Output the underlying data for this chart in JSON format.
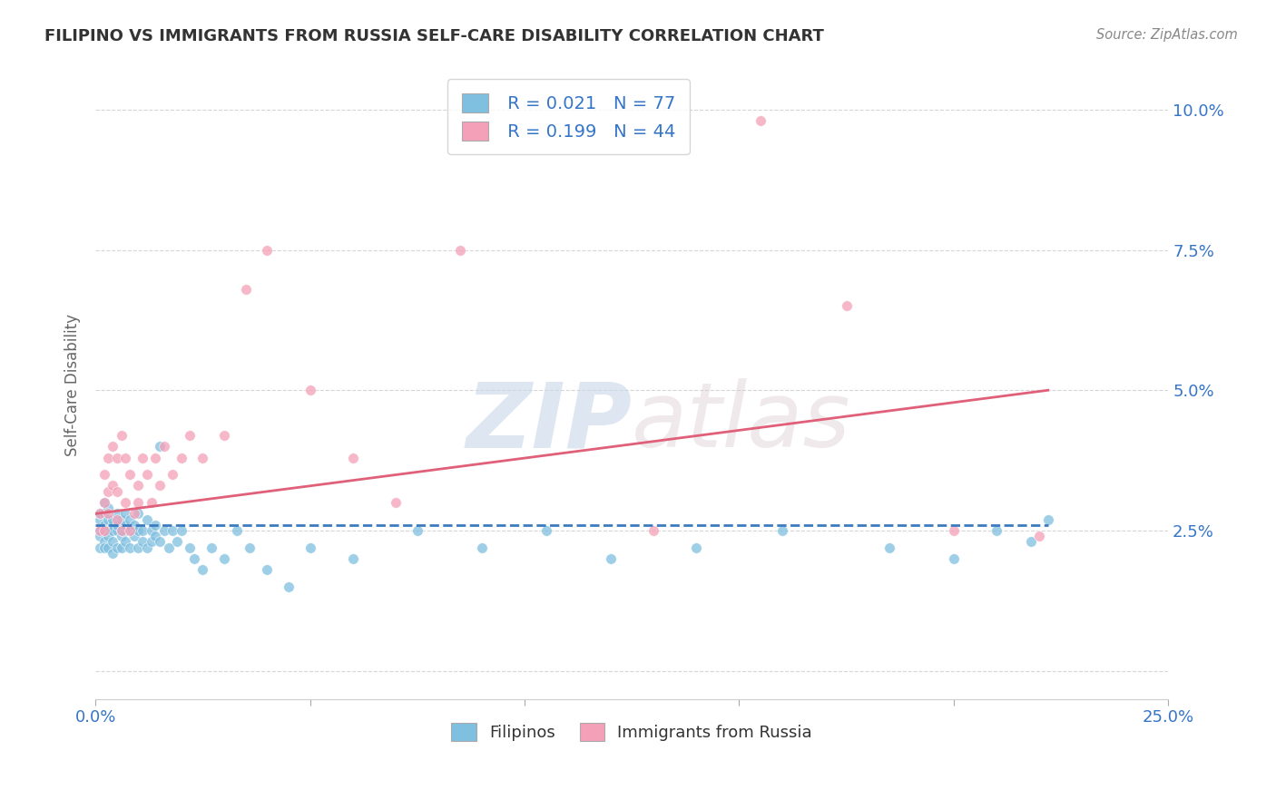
{
  "title": "FILIPINO VS IMMIGRANTS FROM RUSSIA SELF-CARE DISABILITY CORRELATION CHART",
  "source": "Source: ZipAtlas.com",
  "ylabel": "Self-Care Disability",
  "xlim": [
    0.0,
    0.25
  ],
  "ylim": [
    -0.005,
    0.107
  ],
  "xticks": [
    0.0,
    0.05,
    0.1,
    0.15,
    0.2,
    0.25
  ],
  "yticks": [
    0.0,
    0.025,
    0.05,
    0.075,
    0.1
  ],
  "ytick_labels": [
    "",
    "2.5%",
    "5.0%",
    "7.5%",
    "10.0%"
  ],
  "xtick_labels_bottom": [
    "0.0%",
    "",
    "",
    "",
    "",
    "25.0%"
  ],
  "legend_labels": [
    "Filipinos",
    "Immigrants from Russia"
  ],
  "series1_R": 0.021,
  "series1_N": 77,
  "series2_R": 0.199,
  "series2_N": 44,
  "color_blue": "#7fbfdf",
  "color_pink": "#f4a0b8",
  "color_blue_line": "#3c7bbf",
  "color_pink_line": "#e0607a",
  "color_axis": "#3575C8",
  "color_grid": "#cccccc",
  "color_title": "#333333",
  "watermark_zip": "ZIP",
  "watermark_atlas": "atlas",
  "background_color": "#ffffff",
  "blue_scatter_x": [
    0.001,
    0.001,
    0.001,
    0.001,
    0.001,
    0.002,
    0.002,
    0.002,
    0.002,
    0.002,
    0.002,
    0.003,
    0.003,
    0.003,
    0.003,
    0.003,
    0.004,
    0.004,
    0.004,
    0.004,
    0.004,
    0.005,
    0.005,
    0.005,
    0.005,
    0.006,
    0.006,
    0.006,
    0.006,
    0.007,
    0.007,
    0.007,
    0.008,
    0.008,
    0.008,
    0.009,
    0.009,
    0.01,
    0.01,
    0.01,
    0.011,
    0.011,
    0.012,
    0.012,
    0.013,
    0.013,
    0.014,
    0.014,
    0.015,
    0.015,
    0.016,
    0.017,
    0.018,
    0.019,
    0.02,
    0.022,
    0.023,
    0.025,
    0.027,
    0.03,
    0.033,
    0.036,
    0.04,
    0.045,
    0.05,
    0.06,
    0.075,
    0.09,
    0.105,
    0.12,
    0.14,
    0.16,
    0.185,
    0.2,
    0.21,
    0.218,
    0.222
  ],
  "blue_scatter_y": [
    0.025,
    0.027,
    0.022,
    0.028,
    0.024,
    0.026,
    0.023,
    0.028,
    0.025,
    0.022,
    0.03,
    0.027,
    0.025,
    0.022,
    0.029,
    0.024,
    0.026,
    0.023,
    0.025,
    0.027,
    0.021,
    0.025,
    0.028,
    0.022,
    0.026,
    0.024,
    0.027,
    0.022,
    0.025,
    0.023,
    0.026,
    0.028,
    0.025,
    0.022,
    0.027,
    0.024,
    0.026,
    0.022,
    0.025,
    0.028,
    0.023,
    0.025,
    0.022,
    0.027,
    0.025,
    0.023,
    0.026,
    0.024,
    0.04,
    0.023,
    0.025,
    0.022,
    0.025,
    0.023,
    0.025,
    0.022,
    0.02,
    0.018,
    0.022,
    0.02,
    0.025,
    0.022,
    0.018,
    0.015,
    0.022,
    0.02,
    0.025,
    0.022,
    0.025,
    0.02,
    0.022,
    0.025,
    0.022,
    0.02,
    0.025,
    0.023,
    0.027
  ],
  "pink_scatter_x": [
    0.001,
    0.001,
    0.002,
    0.002,
    0.002,
    0.003,
    0.003,
    0.003,
    0.004,
    0.004,
    0.005,
    0.005,
    0.005,
    0.006,
    0.006,
    0.007,
    0.007,
    0.008,
    0.008,
    0.009,
    0.01,
    0.01,
    0.011,
    0.012,
    0.013,
    0.014,
    0.015,
    0.016,
    0.018,
    0.02,
    0.022,
    0.025,
    0.03,
    0.035,
    0.04,
    0.05,
    0.06,
    0.07,
    0.085,
    0.13,
    0.155,
    0.175,
    0.2,
    0.22
  ],
  "pink_scatter_y": [
    0.025,
    0.028,
    0.03,
    0.025,
    0.035,
    0.028,
    0.038,
    0.032,
    0.033,
    0.04,
    0.027,
    0.032,
    0.038,
    0.025,
    0.042,
    0.03,
    0.038,
    0.025,
    0.035,
    0.028,
    0.033,
    0.03,
    0.038,
    0.035,
    0.03,
    0.038,
    0.033,
    0.04,
    0.035,
    0.038,
    0.042,
    0.038,
    0.042,
    0.068,
    0.075,
    0.05,
    0.038,
    0.03,
    0.075,
    0.025,
    0.098,
    0.065,
    0.025,
    0.024
  ],
  "blue_line_x": [
    0.0,
    0.222
  ],
  "blue_line_y": [
    0.026,
    0.026
  ],
  "pink_line_x": [
    0.0,
    0.222
  ],
  "pink_line_y": [
    0.028,
    0.05
  ]
}
